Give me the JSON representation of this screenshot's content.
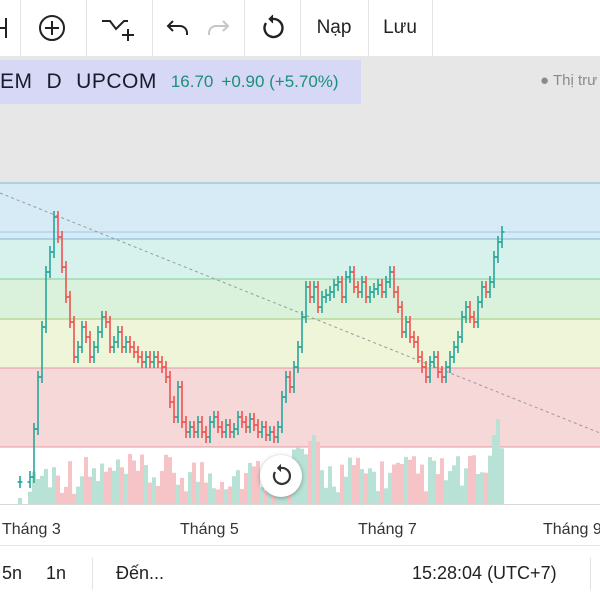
{
  "toolbar": {
    "add_indicator_icon": "plus-circle-icon",
    "compare_icon": "compare-icon",
    "undo_icon": "undo-icon",
    "redo_icon": "redo-icon",
    "refresh_icon": "refresh-icon",
    "load_label": "Nạp",
    "save_label": "Lưu"
  },
  "legend": {
    "symbol": "EM",
    "interval": "D",
    "exchange": "UPCOM",
    "price": "16.70",
    "change": "+0.90 (+5.70%)",
    "market_status": "● Thị trư"
  },
  "xaxis": {
    "labels": [
      "Tháng 3",
      "Tháng 5",
      "Tháng 7",
      "Tháng 9"
    ]
  },
  "bottombar": {
    "range_5n": "5n",
    "range_1n": "1n",
    "goto_label": "Đến...",
    "clock": "15:28:04 (UTC+7)"
  },
  "colors": {
    "up": "#26a69a",
    "down": "#ef5350",
    "legend_bg": "#d6d8f5",
    "fib_top": "#e6e6e6",
    "fib_blue": "#d4eaf5",
    "fib_teal": "#d7f3ec",
    "fib_green": "#d9f2dc",
    "fib_yellow": "#eef5d8",
    "fib_red": "#f7d7d9"
  }
}
